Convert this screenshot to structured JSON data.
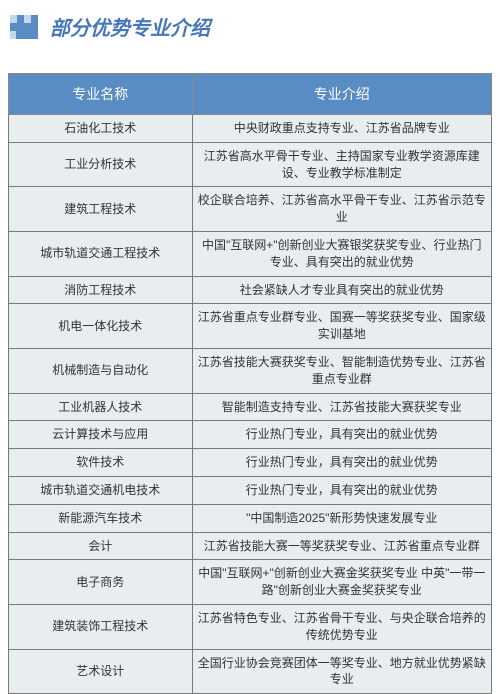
{
  "title": "部分优势专业介绍",
  "table": {
    "headers": [
      "专业名称",
      "专业介绍"
    ],
    "rows": [
      [
        "石油化工技术",
        "中央财政重点支持专业、江苏省品牌专业"
      ],
      [
        "工业分析技术",
        "江苏省高水平骨干专业、主持国家专业教学资源库建设、专业教学标准制定"
      ],
      [
        "建筑工程技术",
        "校企联合培养、江苏省高水平骨干专业、江苏省示范专业"
      ],
      [
        "城市轨道交通工程技术",
        "中国\"互联网+\"创新创业大赛银奖获奖专业、行业热门专业、具有突出的就业优势"
      ],
      [
        "消防工程技术",
        "社会紧缺人才专业具有突出的就业优势"
      ],
      [
        "机电一体化技术",
        "江苏省重点专业群专业、国赛一等奖获奖专业、国家级实训基地"
      ],
      [
        "机械制造与自动化",
        "江苏省技能大赛获奖专业、智能制造优势专业、江苏省重点专业群"
      ],
      [
        "工业机器人技术",
        "智能制造支持专业、江苏省技能大赛获奖专业"
      ],
      [
        "云计算技术与应用",
        "行业热门专业，具有突出的就业优势"
      ],
      [
        "软件技术",
        "行业热门专业，具有突出的就业优势"
      ],
      [
        "城市轨道交通机电技术",
        "行业热门专业，具有突出的就业优势"
      ],
      [
        "新能源汽车技术",
        "\"中国制造2025\"新形势快速发展专业"
      ],
      [
        "会计",
        "江苏省技能大赛一等奖获奖专业、江苏省重点专业群"
      ],
      [
        "电子商务",
        "中国\"互联网+\"创新创业大赛金奖获奖专业 中英\"一带一路\"创新创业大赛金奖获奖专业"
      ],
      [
        "建筑装饰工程技术",
        "江苏省特色专业、江苏省骨干专业、与央企联合培养的传统优势专业"
      ],
      [
        "艺术设计",
        "全国行业协会竞赛团体一等奖专业、地方就业优势紧缺专业"
      ]
    ]
  },
  "colors": {
    "title_color": "#4577b8",
    "header_bg": "#5a8cc4",
    "header_text": "#ffffff",
    "cell_bg": "#e8edf0",
    "border": "#7a7a7a",
    "icon_light": "#c8d8ec",
    "icon_dark": "#5a8cc4"
  }
}
